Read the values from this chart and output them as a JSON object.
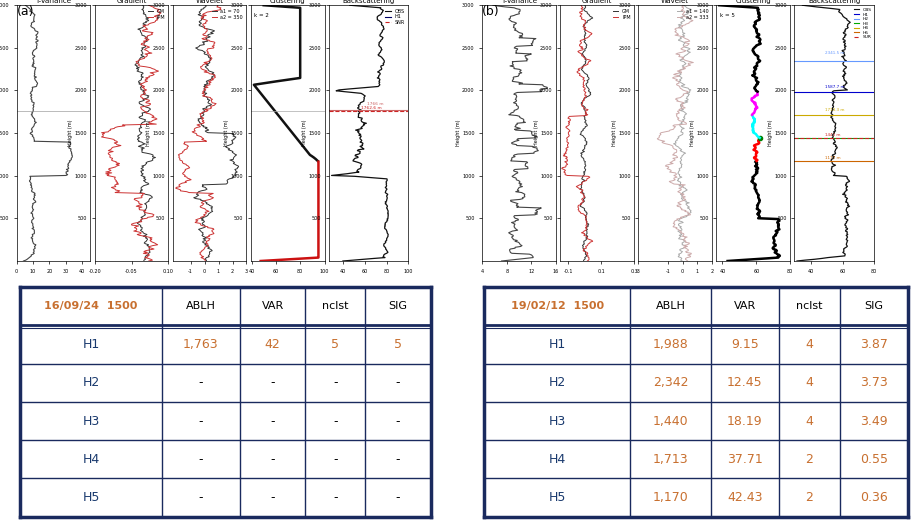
{
  "panel_a_label": "(a)",
  "panel_b_label": "(b)",
  "table_a": {
    "date": "16/09/24  1500",
    "headers": [
      "ABLH",
      "VAR",
      "nclst",
      "SIG"
    ],
    "rows": [
      {
        "name": "H1",
        "vals": [
          "1,763",
          "42",
          "5",
          "5"
        ],
        "val_color": "#c87030"
      },
      {
        "name": "H2",
        "vals": [
          "-",
          "-",
          "-",
          "-"
        ],
        "val_color": "black"
      },
      {
        "name": "H3",
        "vals": [
          "-",
          "-",
          "-",
          "-"
        ],
        "val_color": "black"
      },
      {
        "name": "H4",
        "vals": [
          "-",
          "-",
          "-",
          "-"
        ],
        "val_color": "black"
      },
      {
        "name": "H5",
        "vals": [
          "-",
          "-",
          "-",
          "-"
        ],
        "val_color": "black"
      }
    ]
  },
  "table_b": {
    "date": "19/02/12  1500",
    "headers": [
      "ABLH",
      "VAR",
      "nclst",
      "SIG"
    ],
    "rows": [
      {
        "name": "H1",
        "vals": [
          "1,988",
          "9.15",
          "4",
          "3.87"
        ],
        "val_color": "#c87030"
      },
      {
        "name": "H2",
        "vals": [
          "2,342",
          "12.45",
          "4",
          "3.73"
        ],
        "val_color": "#c87030"
      },
      {
        "name": "H3",
        "vals": [
          "1,440",
          "18.19",
          "4",
          "3.49"
        ],
        "val_color": "#c87030"
      },
      {
        "name": "H4",
        "vals": [
          "1,713",
          "37.71",
          "2",
          "0.55"
        ],
        "val_color": "#c87030"
      },
      {
        "name": "H5",
        "vals": [
          "1,170",
          "42.43",
          "2",
          "0.36"
        ],
        "val_color": "#c87030"
      }
    ]
  },
  "border_color": "#1a2a5e",
  "date_color": "#c87030",
  "header_text_color": "black",
  "row_name_color": "#1a3a6e",
  "orange_col": "#c87030"
}
